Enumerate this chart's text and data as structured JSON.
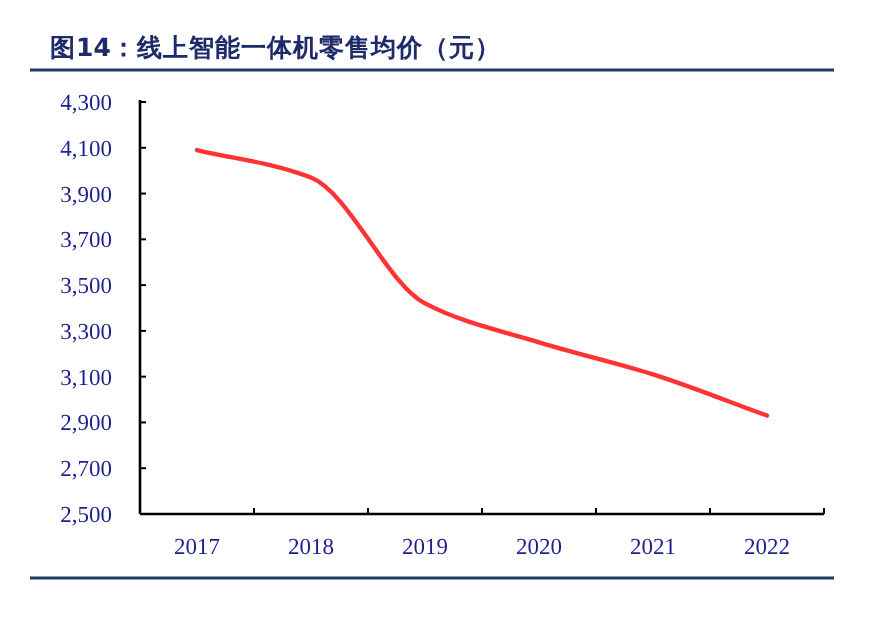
{
  "chart_data": {
    "type": "line",
    "title": "图14：线上智能一体机零售均价（元）",
    "categories": [
      "2017",
      "2018",
      "2019",
      "2020",
      "2021",
      "2022"
    ],
    "series": [
      {
        "color": "#ff3333",
        "values": [
          4090,
          3970,
          3420,
          3250,
          3110,
          2930
        ]
      }
    ],
    "ylim": [
      2500,
      4300
    ],
    "yticks": [
      {
        "value": 2500,
        "label": "2,500"
      },
      {
        "value": 2700,
        "label": "2,700"
      },
      {
        "value": 2900,
        "label": "2,900"
      },
      {
        "value": 3100,
        "label": "3,100"
      },
      {
        "value": 3300,
        "label": "3,300"
      },
      {
        "value": 3500,
        "label": "3,500"
      },
      {
        "value": 3700,
        "label": "3,700"
      },
      {
        "value": 3900,
        "label": "3,900"
      },
      {
        "value": 4100,
        "label": "4,100"
      },
      {
        "value": 4300,
        "label": "4,300"
      }
    ],
    "marker": "none",
    "grid": false
  }
}
